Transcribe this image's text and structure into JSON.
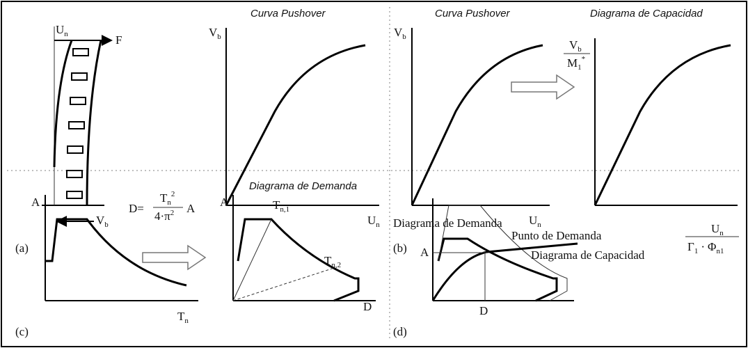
{
  "panels": {
    "a": {
      "label": "(a)",
      "top_label": {
        "base": "U",
        "sub": "n"
      },
      "force": "F",
      "base_shear": {
        "base": "V",
        "sub": "b"
      },
      "chart": {
        "title": "Curva Pushover",
        "y_label": {
          "base": "V",
          "sub": "b"
        },
        "x_label": {
          "base": "U",
          "sub": "n"
        }
      }
    },
    "b": {
      "label": "(b)",
      "left_chart": {
        "title": "Curva Pushover",
        "y_label": {
          "base": "V",
          "sub": "b"
        },
        "x_label": {
          "base": "U",
          "sub": "n"
        }
      },
      "right_chart": {
        "title": "Diagrama de Capacidad",
        "y_label": {
          "num_base": "V",
          "num_sub": "b",
          "den_base": "M",
          "den_sub": "1",
          "den_sup": "*"
        },
        "x_label": {
          "num_base": "U",
          "num_sub": "n",
          "den_g": "Γ",
          "den_g_sub": "1",
          "den_dot": "·",
          "den_p": "Φ",
          "den_p_sub": "n1"
        }
      }
    },
    "c": {
      "label": "(c)",
      "left_chart": {
        "y_label": "A",
        "x_label": {
          "base": "T",
          "sub": "n"
        }
      },
      "formula": {
        "lhs": "D=",
        "num_base": "T",
        "num_sub": "n",
        "num_sup": "2",
        "den": "4·π",
        "den_sup": "2",
        "rhs": "A"
      },
      "right_chart": {
        "title": "Diagrama de Demanda",
        "y_label": "A",
        "x_label": "D",
        "period1": {
          "base": "T",
          "sub": "n,1"
        },
        "period2": {
          "base": "T",
          "sub": "n,2"
        }
      }
    },
    "d": {
      "label": "(d)",
      "demand": "Diagrama de Demanda",
      "point": "Punto de Demanda",
      "capacity": "Diagrama de Capacidad",
      "y_label": "A",
      "x_label": "D"
    }
  }
}
